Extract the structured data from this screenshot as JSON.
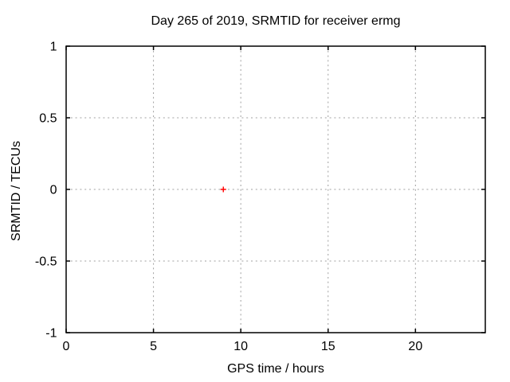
{
  "chart_data": {
    "type": "scatter",
    "title": "Day 265 of 2019, SRMTID for receiver ermg",
    "xlabel": "GPS time / hours",
    "ylabel": "SRMTID / TECUs",
    "xlim": [
      0,
      24
    ],
    "ylim": [
      -1,
      1
    ],
    "x_ticks": [
      0,
      5,
      10,
      15,
      20
    ],
    "y_ticks": [
      -1,
      -0.5,
      0,
      0.5,
      1
    ],
    "grid": true,
    "legend": "none",
    "series": [
      {
        "name": "SRMTID",
        "marker": "plus",
        "color": "#ff0000",
        "points": [
          [
            9,
            0
          ]
        ]
      }
    ],
    "colors": {
      "background": "#ffffff",
      "border": "#000000",
      "grid": "#a0a0a0",
      "text": "#000000"
    }
  }
}
